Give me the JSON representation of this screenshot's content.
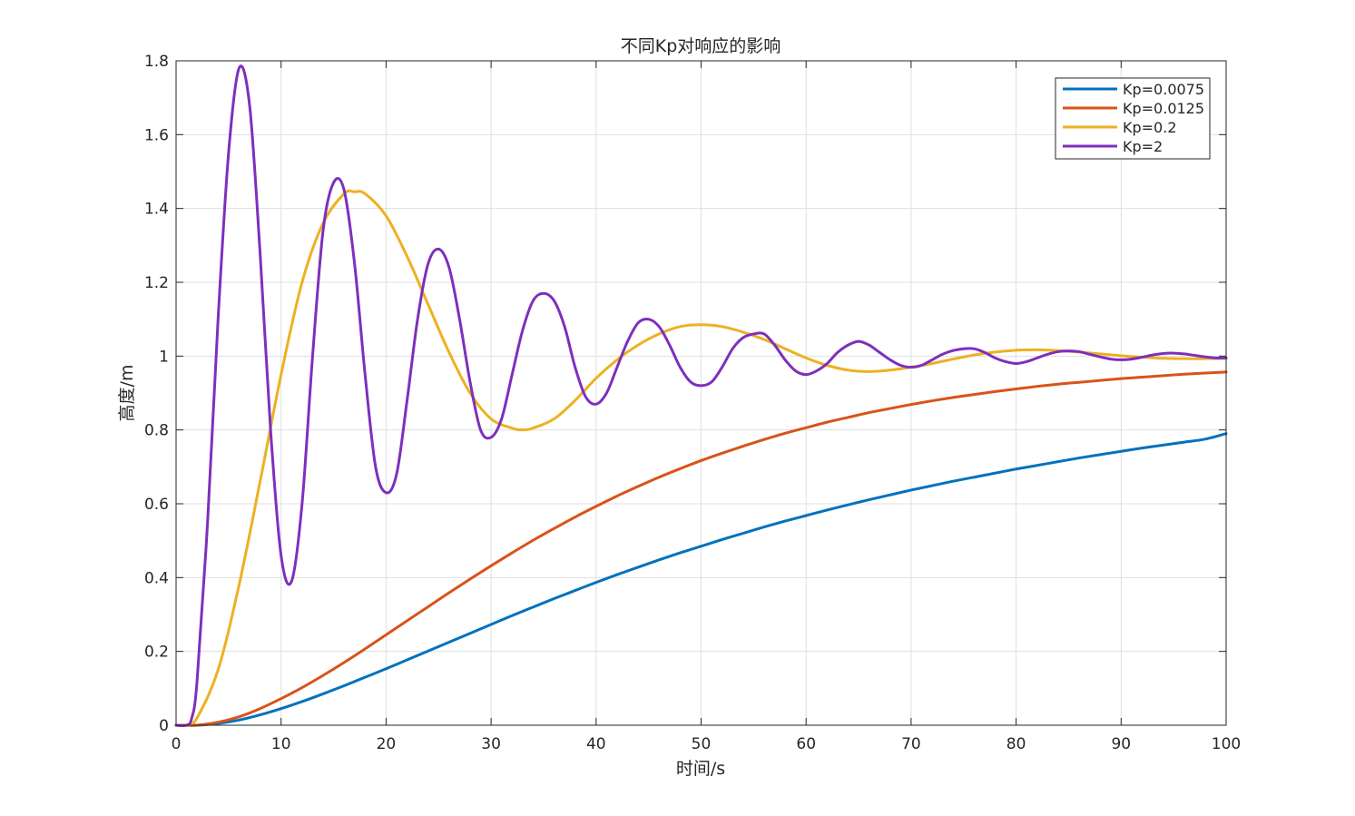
{
  "chart_data": {
    "type": "line",
    "title": "不同Kp对响应的影响",
    "xlabel": "时间/s",
    "ylabel": "高度/m",
    "xlim": [
      0,
      100
    ],
    "ylim": [
      0,
      1.8
    ],
    "xticks": [
      0,
      10,
      20,
      30,
      40,
      50,
      60,
      70,
      80,
      90,
      100
    ],
    "yticks": [
      0,
      0.2,
      0.4,
      0.6,
      0.8,
      1,
      1.2,
      1.4,
      1.6,
      1.8
    ],
    "xtick_labels": [
      "0",
      "10",
      "20",
      "30",
      "40",
      "50",
      "60",
      "70",
      "80",
      "90",
      "100"
    ],
    "ytick_labels": [
      "0",
      "0.2",
      "0.4",
      "0.6",
      "0.8",
      "1",
      "1.2",
      "1.4",
      "1.6",
      "1.8"
    ],
    "grid": true,
    "legend_position": "top-right",
    "series": [
      {
        "name": "Kp=0.0075",
        "color": "#0072BD",
        "x": [
          0,
          1,
          2,
          4,
          6,
          8,
          10,
          12,
          14,
          16,
          18,
          20,
          22,
          24,
          26,
          28,
          30,
          32,
          34,
          36,
          38,
          40,
          42,
          44,
          46,
          48,
          50,
          52,
          54,
          56,
          58,
          60,
          62,
          64,
          66,
          68,
          70,
          72,
          74,
          76,
          78,
          80,
          82,
          84,
          86,
          88,
          90,
          92,
          94,
          96,
          98,
          100
        ],
        "y": [
          0,
          0,
          0,
          0.005,
          0.014,
          0.028,
          0.045,
          0.064,
          0.085,
          0.107,
          0.13,
          0.153,
          0.177,
          0.201,
          0.225,
          0.249,
          0.273,
          0.297,
          0.32,
          0.343,
          0.365,
          0.387,
          0.408,
          0.428,
          0.448,
          0.467,
          0.485,
          0.503,
          0.52,
          0.537,
          0.553,
          0.568,
          0.583,
          0.597,
          0.611,
          0.624,
          0.637,
          0.649,
          0.661,
          0.672,
          0.683,
          0.694,
          0.704,
          0.714,
          0.724,
          0.733,
          0.742,
          0.751,
          0.759,
          0.767,
          0.775,
          0.79
        ]
      },
      {
        "name": "Kp=0.0125",
        "color": "#D95319",
        "x": [
          0,
          1,
          2,
          4,
          6,
          8,
          10,
          12,
          14,
          16,
          18,
          20,
          22,
          24,
          26,
          28,
          30,
          32,
          34,
          36,
          38,
          40,
          42,
          44,
          46,
          48,
          50,
          52,
          54,
          56,
          58,
          60,
          62,
          64,
          66,
          68,
          70,
          72,
          74,
          76,
          78,
          80,
          82,
          84,
          86,
          88,
          90,
          92,
          94,
          96,
          98,
          100
        ],
        "y": [
          0,
          0,
          0,
          0.008,
          0.023,
          0.045,
          0.072,
          0.102,
          0.135,
          0.17,
          0.207,
          0.245,
          0.283,
          0.321,
          0.359,
          0.396,
          0.432,
          0.467,
          0.501,
          0.533,
          0.564,
          0.593,
          0.621,
          0.647,
          0.672,
          0.695,
          0.717,
          0.737,
          0.756,
          0.774,
          0.791,
          0.806,
          0.821,
          0.834,
          0.847,
          0.858,
          0.869,
          0.879,
          0.888,
          0.896,
          0.904,
          0.911,
          0.918,
          0.924,
          0.929,
          0.934,
          0.939,
          0.943,
          0.947,
          0.951,
          0.954,
          0.957
        ]
      },
      {
        "name": "Kp=0.2",
        "color": "#EDB120",
        "x": [
          0,
          1,
          2,
          4,
          6,
          8,
          10,
          12,
          14,
          16,
          17,
          18,
          20,
          22,
          24,
          26,
          28,
          30,
          32,
          33,
          34,
          36,
          38,
          40,
          42,
          44,
          46,
          48,
          50,
          52,
          54,
          56,
          58,
          60,
          62,
          64,
          66,
          68,
          70,
          72,
          74,
          76,
          78,
          80,
          82,
          84,
          86,
          88,
          90,
          92,
          94,
          96,
          98,
          100
        ],
        "y": [
          0,
          0,
          0.02,
          0.15,
          0.38,
          0.66,
          0.95,
          1.2,
          1.36,
          1.44,
          1.445,
          1.44,
          1.38,
          1.27,
          1.14,
          1.01,
          0.9,
          0.83,
          0.805,
          0.8,
          0.805,
          0.83,
          0.88,
          0.94,
          0.99,
          1.03,
          1.06,
          1.08,
          1.085,
          1.08,
          1.065,
          1.045,
          1.02,
          0.995,
          0.975,
          0.962,
          0.958,
          0.962,
          0.97,
          0.98,
          0.992,
          1.003,
          1.011,
          1.016,
          1.017,
          1.015,
          1.011,
          1.006,
          1.001,
          0.997,
          0.994,
          0.993,
          0.993,
          0.994
        ]
      },
      {
        "name": "Kp=2",
        "color": "#7E2FBD",
        "x": [
          0,
          1,
          1.5,
          2,
          3,
          4,
          5,
          6,
          7,
          8,
          9,
          10,
          11,
          12,
          13,
          14,
          15,
          16,
          17,
          18,
          19,
          20,
          21,
          22,
          23,
          24,
          25,
          26,
          27,
          28,
          29,
          30,
          31,
          32,
          33,
          34,
          35,
          36,
          37,
          38,
          39,
          40,
          41,
          42,
          43,
          44,
          45,
          46,
          47,
          48,
          49,
          50,
          51,
          52,
          53,
          54,
          55,
          56,
          57,
          58,
          59,
          60,
          61,
          62,
          63,
          64,
          65,
          66,
          67,
          68,
          69,
          70,
          71,
          72,
          73,
          74,
          75,
          76,
          77,
          78,
          79,
          80,
          81,
          82,
          83,
          84,
          85,
          86,
          87,
          88,
          89,
          90,
          91,
          92,
          93,
          94,
          95,
          96,
          97,
          98,
          99,
          100
        ],
        "y": [
          0,
          0,
          0.02,
          0.12,
          0.55,
          1.1,
          1.55,
          1.78,
          1.68,
          1.28,
          0.8,
          0.46,
          0.39,
          0.6,
          1.0,
          1.34,
          1.47,
          1.45,
          1.25,
          0.95,
          0.7,
          0.63,
          0.68,
          0.88,
          1.1,
          1.25,
          1.29,
          1.24,
          1.1,
          0.93,
          0.8,
          0.78,
          0.83,
          0.95,
          1.07,
          1.15,
          1.17,
          1.15,
          1.08,
          0.97,
          0.89,
          0.87,
          0.9,
          0.97,
          1.04,
          1.09,
          1.1,
          1.08,
          1.03,
          0.97,
          0.93,
          0.92,
          0.93,
          0.97,
          1.02,
          1.05,
          1.06,
          1.06,
          1.03,
          0.99,
          0.96,
          0.95,
          0.96,
          0.98,
          1.01,
          1.03,
          1.04,
          1.03,
          1.01,
          0.99,
          0.975,
          0.97,
          0.975,
          0.99,
          1.005,
          1.015,
          1.02,
          1.02,
          1.01,
          0.995,
          0.985,
          0.98,
          0.985,
          0.995,
          1.005,
          1.012,
          1.014,
          1.012,
          1.005,
          0.998,
          0.992,
          0.99,
          0.992,
          0.997,
          1.003,
          1.007,
          1.008,
          1.006,
          1.002,
          0.998,
          0.995,
          0.995
        ]
      }
    ]
  }
}
